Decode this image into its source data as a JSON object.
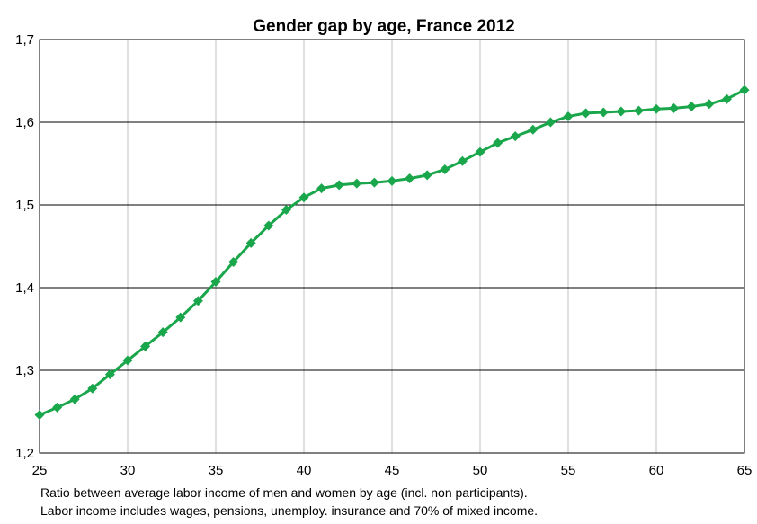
{
  "chart_data": {
    "type": "line",
    "title": "Gender gap by age, France 2012",
    "xlabel": "",
    "ylabel": "",
    "xlim": [
      25,
      65
    ],
    "ylim": [
      1.2,
      1.7
    ],
    "x_ticks": [
      25,
      30,
      35,
      40,
      45,
      50,
      55,
      60,
      65
    ],
    "y_ticks": [
      1.2,
      1.3,
      1.4,
      1.5,
      1.6,
      1.7
    ],
    "x_tick_labels": [
      "25",
      "30",
      "35",
      "40",
      "45",
      "50",
      "55",
      "60",
      "65"
    ],
    "y_tick_labels": [
      "1,2",
      "1,3",
      "1,4",
      "1,5",
      "1,6",
      "1,7"
    ],
    "grid": {
      "vertical": true,
      "horizontal": true
    },
    "legend": "none",
    "series": [
      {
        "color": "#1aa64b",
        "marker": "diamond",
        "x": [
          25,
          26,
          27,
          28,
          29,
          30,
          31,
          32,
          33,
          34,
          35,
          36,
          37,
          38,
          39,
          40,
          41,
          42,
          43,
          44,
          45,
          46,
          47,
          48,
          49,
          50,
          51,
          52,
          53,
          54,
          55,
          56,
          57,
          58,
          59,
          60,
          61,
          62,
          63,
          64,
          65
        ],
        "values": [
          1.246,
          1.255,
          1.265,
          1.278,
          1.295,
          1.312,
          1.329,
          1.346,
          1.364,
          1.384,
          1.407,
          1.431,
          1.454,
          1.475,
          1.494,
          1.509,
          1.52,
          1.524,
          1.526,
          1.527,
          1.529,
          1.532,
          1.536,
          1.543,
          1.553,
          1.564,
          1.575,
          1.583,
          1.591,
          1.6,
          1.607,
          1.611,
          1.612,
          1.613,
          1.614,
          1.616,
          1.617,
          1.619,
          1.622,
          1.628,
          1.639
        ]
      }
    ],
    "notes": [
      "Ratio between average labor income of men and women by age (incl. non participants).",
      "Labor income includes wages, pensions, unemploy. insurance and 70% of mixed income."
    ]
  }
}
